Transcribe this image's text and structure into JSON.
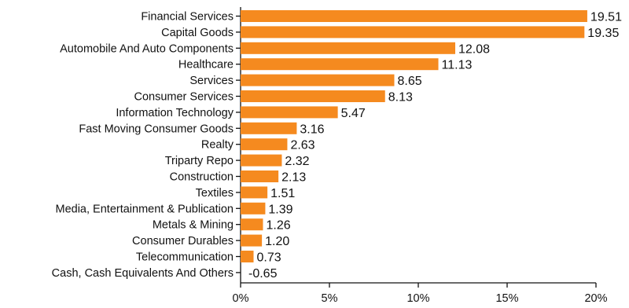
{
  "chart_data": {
    "type": "bar",
    "orientation": "horizontal",
    "categories": [
      "Financial Services",
      "Capital Goods",
      "Automobile And Auto Components",
      "Healthcare",
      "Services",
      "Consumer Services",
      "Information Technology",
      "Fast Moving Consumer Goods",
      "Realty",
      "Triparty Repo",
      "Construction",
      "Textiles",
      "Media, Entertainment & Publication",
      "Metals & Mining",
      "Consumer Durables",
      "Telecommunication",
      "Cash, Cash Equivalents And Others"
    ],
    "values": [
      19.51,
      19.35,
      12.08,
      11.13,
      8.65,
      8.13,
      5.47,
      3.16,
      2.63,
      2.32,
      2.13,
      1.51,
      1.39,
      1.26,
      1.2,
      0.73,
      -0.65
    ],
    "value_labels": [
      "19.51",
      "19.35",
      "12.08",
      "11.13",
      "8.65",
      "8.13",
      "5.47",
      "3.16",
      "2.63",
      "2.32",
      "2.13",
      "1.51",
      "1.39",
      "1.26",
      "1.20",
      "0.73",
      "-0.65"
    ],
    "x_ticks": [
      0,
      5,
      10,
      15,
      20
    ],
    "x_tick_labels": [
      "0%",
      "5%",
      "10%",
      "15%",
      "20%"
    ],
    "xlim": [
      0,
      20
    ],
    "title": "",
    "xlabel": "",
    "ylabel": "",
    "grid": false,
    "legend": "none",
    "bar_color": "#F58A1F"
  }
}
